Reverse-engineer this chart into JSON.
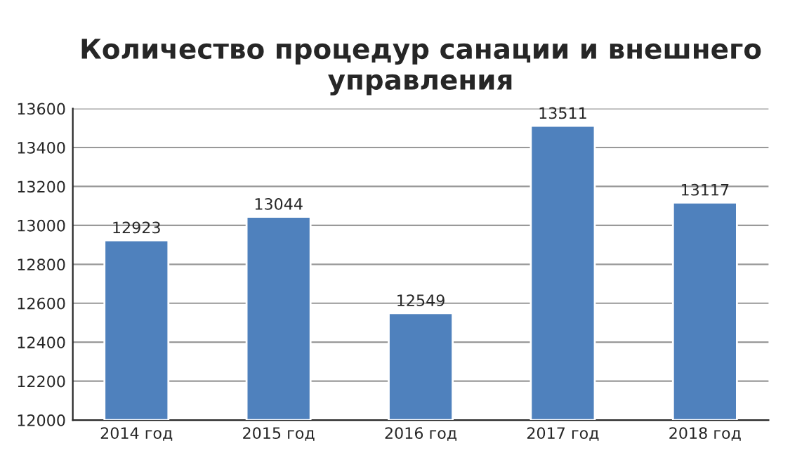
{
  "chart_data": {
    "type": "bar",
    "title": "Количество процедур санации и внешнего управления",
    "categories": [
      "2014 год",
      "2015 год",
      "2016 год",
      "2017 год",
      "2018 год"
    ],
    "values": [
      12923,
      13044,
      12549,
      13511,
      13117
    ],
    "color": "#4f81bd",
    "ylim": [
      12000,
      13600
    ],
    "yticks": [
      12000,
      12200,
      12400,
      12600,
      12800,
      13000,
      13200,
      13400,
      13600
    ],
    "grid": "y",
    "data_labels": true,
    "legend": false
  }
}
